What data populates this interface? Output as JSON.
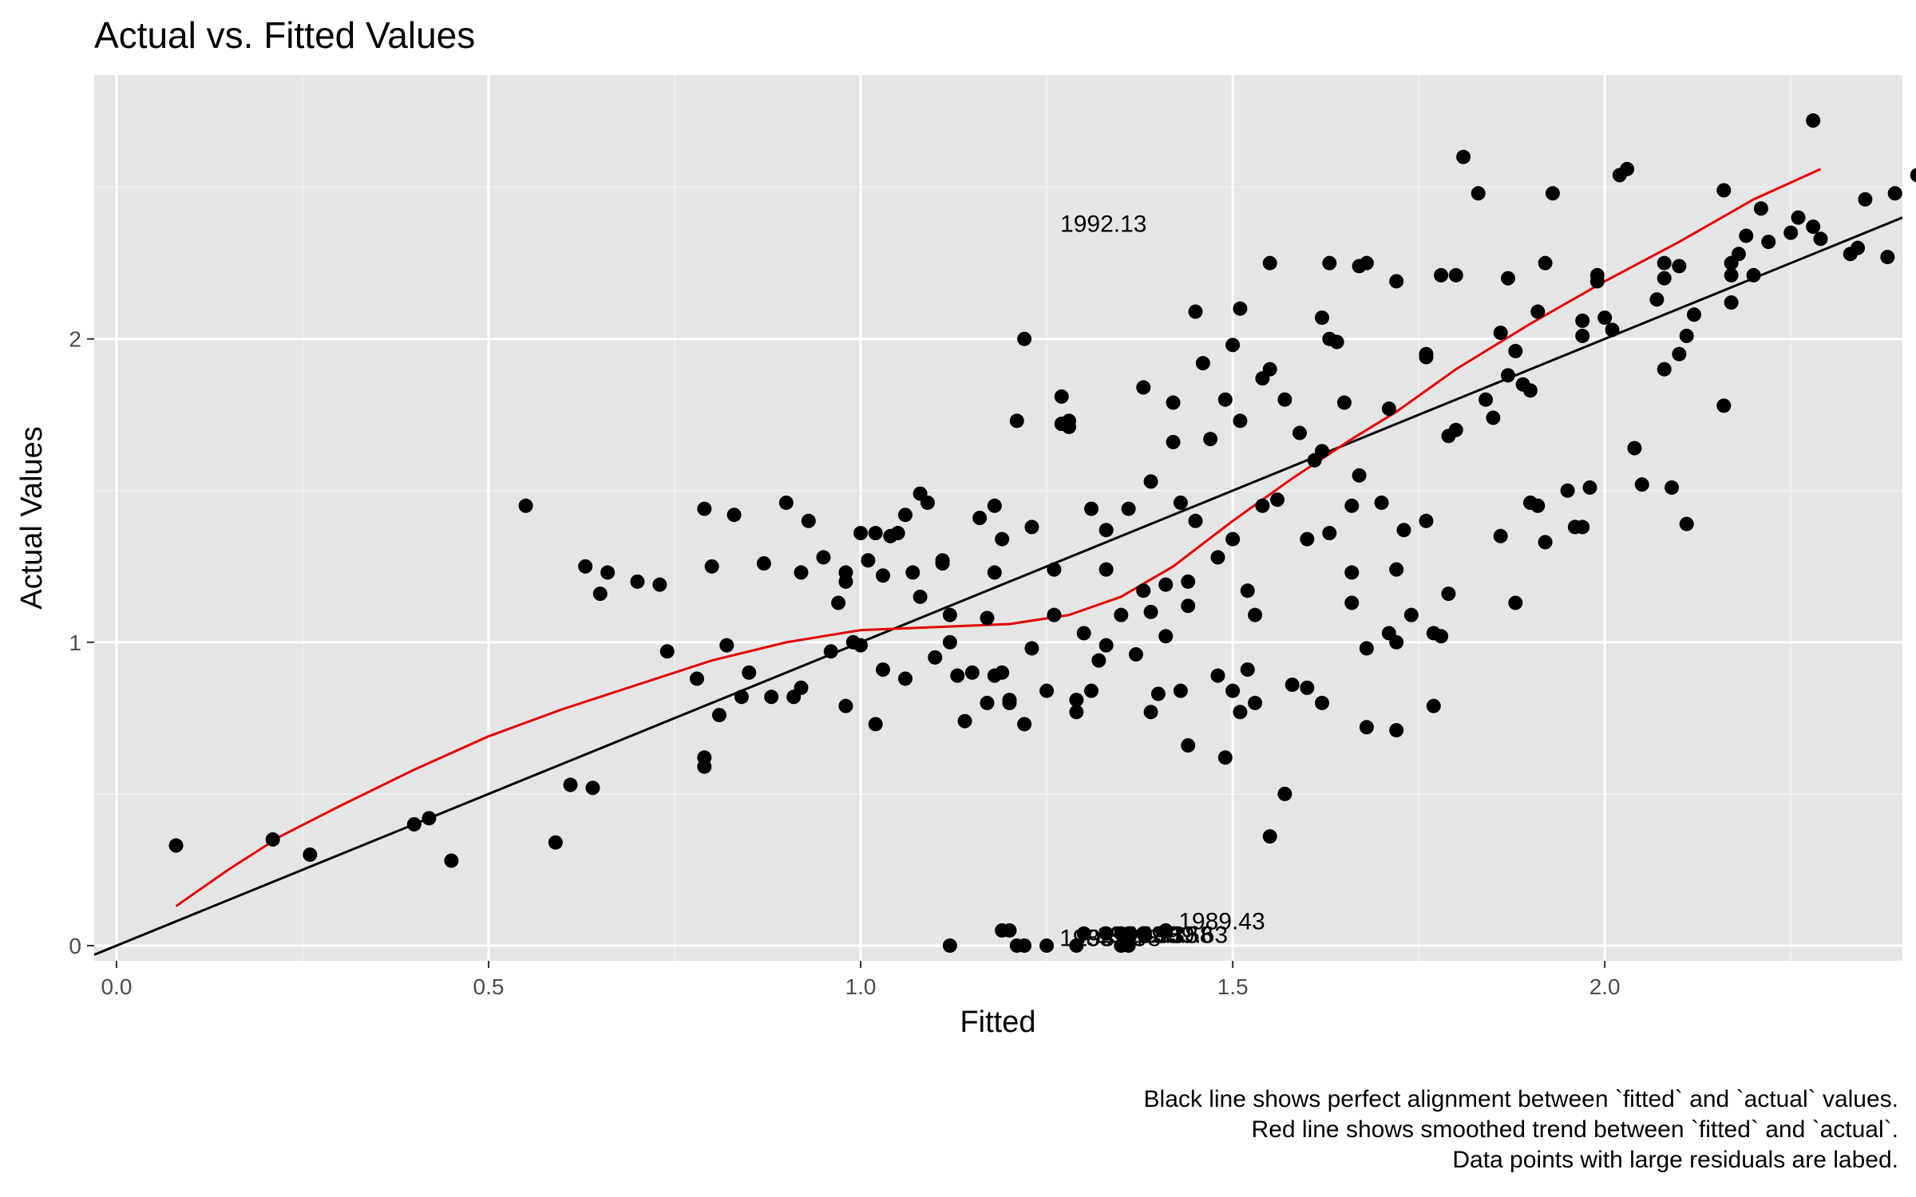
{
  "chart_data": {
    "type": "scatter",
    "title": "Actual vs. Fitted Values",
    "xlabel": "Fitted",
    "ylabel": "Actual Values",
    "xlim": [
      -0.03,
      2.4
    ],
    "ylim": [
      -0.05,
      2.87
    ],
    "x_ticks": [
      0.0,
      0.5,
      1.0,
      1.5,
      2.0
    ],
    "x_tick_labels": [
      "0.0",
      "0.5",
      "1.0",
      "1.5",
      "2.0"
    ],
    "y_ticks": [
      0,
      1,
      2
    ],
    "y_tick_labels": [
      "0",
      "1",
      "2"
    ],
    "grid": true,
    "legend": "none",
    "caption": [
      "Black line shows perfect alignment between `fitted` and `actual` values.",
      "Red line shows smoothed trend between `fitted` and `actual`.",
      "Data points with large residuals are labed."
    ],
    "reference_line": {
      "color": "#000000",
      "slope": 1,
      "intercept": 0
    },
    "smooth_line": {
      "color": "#e60000",
      "points": [
        [
          0.08,
          0.13
        ],
        [
          0.15,
          0.25
        ],
        [
          0.22,
          0.36
        ],
        [
          0.3,
          0.46
        ],
        [
          0.4,
          0.58
        ],
        [
          0.5,
          0.69
        ],
        [
          0.6,
          0.78
        ],
        [
          0.7,
          0.86
        ],
        [
          0.8,
          0.94
        ],
        [
          0.9,
          1.0
        ],
        [
          1.0,
          1.04
        ],
        [
          1.1,
          1.05
        ],
        [
          1.2,
          1.06
        ],
        [
          1.28,
          1.09
        ],
        [
          1.35,
          1.15
        ],
        [
          1.42,
          1.25
        ],
        [
          1.5,
          1.4
        ],
        [
          1.58,
          1.54
        ],
        [
          1.66,
          1.67
        ],
        [
          1.72,
          1.76
        ],
        [
          1.8,
          1.9
        ],
        [
          1.9,
          2.05
        ],
        [
          2.0,
          2.19
        ],
        [
          2.1,
          2.32
        ],
        [
          2.2,
          2.46
        ],
        [
          2.29,
          2.56
        ]
      ]
    },
    "labels": [
      {
        "text": "1992.13",
        "x": 1.251,
        "y": 2.38
      },
      {
        "text": "1989.43",
        "x": 1.41,
        "y": 0.08
      },
      {
        "text": "1989.33",
        "x": 1.3,
        "y": 0.035
      },
      {
        "text": "1989.38",
        "x": 1.32,
        "y": 0.035
      },
      {
        "text": "1989.58",
        "x": 1.34,
        "y": 0.035
      },
      {
        "text": "1989.63",
        "x": 1.36,
        "y": 0.035
      },
      {
        "text": "1989.73",
        "x": 1.25,
        "y": 0.025
      },
      {
        "text": "1989.78",
        "x": 1.27,
        "y": 0.025
      }
    ],
    "points": [
      [
        0.08,
        0.33
      ],
      [
        0.21,
        0.35
      ],
      [
        0.26,
        0.3
      ],
      [
        0.4,
        0.4
      ],
      [
        0.42,
        0.42
      ],
      [
        0.45,
        0.28
      ],
      [
        0.55,
        1.45
      ],
      [
        0.59,
        0.34
      ],
      [
        0.61,
        0.53
      ],
      [
        0.63,
        1.25
      ],
      [
        0.64,
        0.52
      ],
      [
        0.65,
        1.16
      ],
      [
        0.66,
        1.23
      ],
      [
        0.7,
        1.2
      ],
      [
        0.73,
        1.19
      ],
      [
        0.74,
        0.97
      ],
      [
        0.78,
        0.88
      ],
      [
        0.79,
        0.62
      ],
      [
        0.79,
        0.59
      ],
      [
        0.79,
        1.44
      ],
      [
        0.8,
        1.25
      ],
      [
        0.81,
        0.76
      ],
      [
        0.82,
        0.99
      ],
      [
        0.83,
        1.42
      ],
      [
        0.84,
        0.82
      ],
      [
        0.85,
        0.9
      ],
      [
        0.87,
        1.26
      ],
      [
        0.88,
        0.82
      ],
      [
        0.9,
        1.46
      ],
      [
        0.91,
        0.82
      ],
      [
        0.92,
        0.85
      ],
      [
        0.92,
        1.23
      ],
      [
        0.93,
        1.4
      ],
      [
        0.95,
        1.28
      ],
      [
        0.96,
        0.97
      ],
      [
        0.97,
        1.13
      ],
      [
        0.98,
        0.79
      ],
      [
        0.98,
        1.2
      ],
      [
        0.98,
        1.23
      ],
      [
        0.99,
        1.0
      ],
      [
        1.0,
        1.36
      ],
      [
        1.0,
        0.99
      ],
      [
        1.01,
        1.27
      ],
      [
        1.02,
        0.73
      ],
      [
        1.02,
        1.36
      ],
      [
        1.03,
        0.91
      ],
      [
        1.03,
        1.22
      ],
      [
        1.04,
        1.35
      ],
      [
        1.05,
        1.36
      ],
      [
        1.06,
        0.88
      ],
      [
        1.06,
        1.42
      ],
      [
        1.07,
        1.23
      ],
      [
        1.08,
        1.15
      ],
      [
        1.08,
        1.49
      ],
      [
        1.09,
        1.46
      ],
      [
        1.1,
        0.95
      ],
      [
        1.11,
        1.26
      ],
      [
        1.11,
        1.27
      ],
      [
        1.12,
        1.09
      ],
      [
        1.12,
        1.0
      ],
      [
        1.13,
        0.89
      ],
      [
        1.14,
        0.74
      ],
      [
        1.15,
        0.9
      ],
      [
        1.16,
        1.41
      ],
      [
        1.17,
        0.8
      ],
      [
        1.17,
        1.08
      ],
      [
        1.18,
        1.45
      ],
      [
        1.18,
        0.89
      ],
      [
        1.18,
        1.23
      ],
      [
        1.19,
        1.34
      ],
      [
        1.19,
        0.9
      ],
      [
        1.2,
        0.8
      ],
      [
        1.2,
        0.81
      ],
      [
        1.21,
        1.73
      ],
      [
        1.22,
        2.0
      ],
      [
        1.22,
        0.73
      ],
      [
        1.23,
        0.98
      ],
      [
        1.23,
        1.38
      ],
      [
        1.25,
        0.84
      ],
      [
        1.26,
        1.24
      ],
      [
        1.26,
        1.09
      ],
      [
        1.27,
        1.81
      ],
      [
        1.27,
        1.72
      ],
      [
        1.28,
        1.73
      ],
      [
        1.28,
        1.71
      ],
      [
        1.29,
        0.81
      ],
      [
        1.29,
        0.77
      ],
      [
        1.3,
        1.03
      ],
      [
        1.31,
        0.84
      ],
      [
        1.31,
        1.44
      ],
      [
        1.32,
        0.94
      ],
      [
        1.33,
        0.99
      ],
      [
        1.33,
        1.24
      ],
      [
        1.33,
        1.37
      ],
      [
        1.35,
        1.09
      ],
      [
        1.36,
        1.44
      ],
      [
        1.37,
        0.96
      ],
      [
        1.38,
        1.17
      ],
      [
        1.38,
        1.84
      ],
      [
        1.39,
        1.53
      ],
      [
        1.39,
        1.1
      ],
      [
        1.39,
        0.77
      ],
      [
        1.4,
        0.83
      ],
      [
        1.41,
        1.19
      ],
      [
        1.41,
        1.02
      ],
      [
        1.42,
        1.79
      ],
      [
        1.42,
        1.66
      ],
      [
        1.43,
        0.84
      ],
      [
        1.43,
        1.46
      ],
      [
        1.44,
        1.2
      ],
      [
        1.44,
        0.66
      ],
      [
        1.44,
        1.12
      ],
      [
        1.45,
        1.4
      ],
      [
        1.45,
        2.09
      ],
      [
        1.46,
        1.92
      ],
      [
        1.47,
        1.67
      ],
      [
        1.48,
        1.28
      ],
      [
        1.48,
        0.89
      ],
      [
        1.49,
        1.8
      ],
      [
        1.49,
        0.62
      ],
      [
        1.5,
        1.34
      ],
      [
        1.5,
        1.98
      ],
      [
        1.5,
        0.84
      ],
      [
        1.51,
        0.77
      ],
      [
        1.51,
        1.73
      ],
      [
        1.51,
        2.1
      ],
      [
        1.52,
        1.17
      ],
      [
        1.52,
        0.91
      ],
      [
        1.53,
        1.09
      ],
      [
        1.53,
        0.8
      ],
      [
        1.54,
        1.45
      ],
      [
        1.54,
        1.87
      ],
      [
        1.55,
        1.9
      ],
      [
        1.55,
        0.36
      ],
      [
        1.55,
        2.25
      ],
      [
        1.56,
        1.47
      ],
      [
        1.57,
        1.8
      ],
      [
        1.57,
        0.5
      ],
      [
        1.58,
        0.86
      ],
      [
        1.59,
        1.69
      ],
      [
        1.6,
        0.85
      ],
      [
        1.6,
        1.34
      ],
      [
        1.61,
        1.6
      ],
      [
        1.62,
        2.07
      ],
      [
        1.62,
        1.63
      ],
      [
        1.62,
        0.8
      ],
      [
        1.63,
        1.36
      ],
      [
        1.63,
        2.0
      ],
      [
        1.63,
        2.25
      ],
      [
        1.64,
        1.99
      ],
      [
        1.65,
        1.79
      ],
      [
        1.66,
        1.45
      ],
      [
        1.66,
        1.23
      ],
      [
        1.66,
        1.13
      ],
      [
        1.67,
        1.55
      ],
      [
        1.67,
        2.24
      ],
      [
        1.68,
        2.25
      ],
      [
        1.68,
        0.72
      ],
      [
        1.68,
        0.98
      ],
      [
        1.7,
        1.46
      ],
      [
        1.71,
        1.77
      ],
      [
        1.71,
        1.03
      ],
      [
        1.72,
        2.19
      ],
      [
        1.72,
        0.71
      ],
      [
        1.72,
        1.0
      ],
      [
        1.72,
        1.24
      ],
      [
        1.73,
        1.37
      ],
      [
        1.74,
        1.09
      ],
      [
        1.76,
        1.94
      ],
      [
        1.76,
        1.95
      ],
      [
        1.76,
        1.4
      ],
      [
        1.77,
        1.03
      ],
      [
        1.77,
        0.79
      ],
      [
        1.78,
        2.21
      ],
      [
        1.78,
        1.02
      ],
      [
        1.79,
        1.16
      ],
      [
        1.79,
        1.68
      ],
      [
        1.8,
        2.21
      ],
      [
        1.8,
        1.7
      ],
      [
        1.81,
        2.6
      ],
      [
        1.83,
        2.48
      ],
      [
        1.84,
        1.8
      ],
      [
        1.85,
        1.74
      ],
      [
        1.86,
        1.35
      ],
      [
        1.86,
        2.02
      ],
      [
        1.87,
        1.88
      ],
      [
        1.87,
        2.2
      ],
      [
        1.88,
        1.96
      ],
      [
        1.88,
        1.13
      ],
      [
        1.89,
        1.85
      ],
      [
        1.9,
        1.83
      ],
      [
        1.9,
        1.46
      ],
      [
        1.91,
        1.45
      ],
      [
        1.91,
        2.09
      ],
      [
        1.92,
        1.33
      ],
      [
        1.92,
        2.25
      ],
      [
        1.93,
        2.48
      ],
      [
        1.95,
        1.5
      ],
      [
        1.96,
        1.38
      ],
      [
        1.97,
        1.38
      ],
      [
        1.97,
        2.06
      ],
      [
        1.97,
        2.01
      ],
      [
        1.98,
        1.51
      ],
      [
        1.99,
        2.21
      ],
      [
        1.99,
        2.19
      ],
      [
        2.0,
        2.07
      ],
      [
        2.01,
        2.03
      ],
      [
        2.02,
        2.54
      ],
      [
        2.03,
        2.56
      ],
      [
        2.04,
        1.64
      ],
      [
        2.05,
        1.52
      ],
      [
        2.07,
        2.13
      ],
      [
        2.08,
        2.25
      ],
      [
        2.08,
        1.9
      ],
      [
        2.08,
        2.2
      ],
      [
        2.09,
        1.51
      ],
      [
        2.1,
        2.24
      ],
      [
        2.1,
        1.95
      ],
      [
        2.11,
        2.01
      ],
      [
        2.11,
        1.39
      ],
      [
        2.12,
        2.08
      ],
      [
        2.16,
        1.78
      ],
      [
        2.16,
        2.49
      ],
      [
        2.17,
        2.25
      ],
      [
        2.17,
        2.21
      ],
      [
        2.17,
        2.12
      ],
      [
        2.18,
        2.28
      ],
      [
        2.19,
        2.34
      ],
      [
        2.2,
        2.21
      ],
      [
        2.21,
        2.43
      ],
      [
        2.22,
        2.32
      ],
      [
        2.25,
        2.35
      ],
      [
        2.26,
        2.4
      ],
      [
        2.28,
        2.37
      ],
      [
        2.28,
        2.72
      ],
      [
        2.29,
        2.33
      ],
      [
        2.33,
        2.28
      ],
      [
        2.34,
        2.3
      ],
      [
        2.35,
        2.46
      ],
      [
        2.38,
        2.27
      ],
      [
        2.39,
        2.48
      ],
      [
        2.42,
        2.54
      ],
      [
        1.12,
        0.0
      ],
      [
        1.19,
        0.05
      ],
      [
        1.21,
        0.0
      ],
      [
        1.22,
        0.0
      ],
      [
        1.25,
        0.0
      ],
      [
        1.29,
        0.0
      ],
      [
        1.35,
        0.0
      ],
      [
        1.36,
        0.0
      ],
      [
        1.2,
        0.05
      ],
      [
        1.3,
        0.04
      ],
      [
        1.33,
        0.04
      ],
      [
        1.35,
        0.04
      ],
      [
        1.36,
        0.04
      ],
      [
        1.38,
        0.04
      ],
      [
        1.41,
        0.05
      ]
    ]
  }
}
